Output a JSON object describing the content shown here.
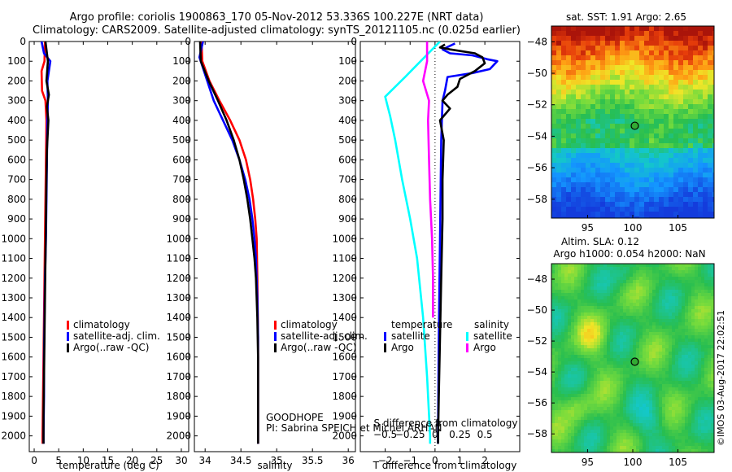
{
  "header": {
    "line1": "Argo profile: coriolis 1900863_170 05-Nov-2012 53.336S 100.227E (NRT data)",
    "line2": "Climatology: CARS2009. Satellite-adjusted climatology: synTS_20121105.nc (0.025d earlier)"
  },
  "footer": {
    "stamp": "©IMOS 03-Aug-2017 22:02:51",
    "program": "GOODHOPE",
    "pi": "PI: Sabrina SPEICH et Michel ARHAN"
  },
  "colors": {
    "climatology": "#ff0000",
    "satellite": "#0000ff",
    "argo": "#000000",
    "argo_salinity": "#ff00ff",
    "satellite_salinity": "#00ffff"
  },
  "chart_data": [
    {
      "type": "line",
      "xlabel": "temperature (deg C)",
      "ylabel": "",
      "xlim": [
        -1,
        31.5
      ],
      "ylim": [
        2080,
        0
      ],
      "y_reversed": true,
      "xticks": [
        0,
        5,
        10,
        15,
        20,
        25,
        30
      ],
      "yticks": [
        0,
        100,
        200,
        300,
        400,
        500,
        600,
        700,
        800,
        900,
        1000,
        1100,
        1200,
        1300,
        1400,
        1500,
        1600,
        1700,
        1800,
        1900,
        2000
      ],
      "legend": [
        "climatology",
        "satellite-adj. clim.",
        "Argo(..raw -QC)"
      ],
      "legend_position": "lower-left",
      "series": [
        {
          "name": "climatology",
          "color": "#ff0000",
          "points": [
            [
              2.2,
              0
            ],
            [
              2.1,
              100
            ],
            [
              1.5,
              150
            ],
            [
              1.6,
              250
            ],
            [
              2.3,
              300
            ],
            [
              2.5,
              400
            ],
            [
              2.4,
              600
            ],
            [
              2.3,
              800
            ],
            [
              2.2,
              1000
            ],
            [
              2.1,
              1200
            ],
            [
              2.0,
              1400
            ],
            [
              1.9,
              1600
            ],
            [
              1.8,
              1800
            ],
            [
              1.7,
              2000
            ],
            [
              1.7,
              2040
            ]
          ]
        },
        {
          "name": "satellite-adj. clim.",
          "color": "#0000ff",
          "points": [
            [
              1.5,
              0
            ],
            [
              2.0,
              60
            ],
            [
              3.3,
              100
            ],
            [
              2.7,
              200
            ],
            [
              2.8,
              300
            ],
            [
              2.7,
              400
            ],
            [
              2.6,
              600
            ],
            [
              2.5,
              800
            ],
            [
              2.4,
              1000
            ],
            [
              2.2,
              1200
            ],
            [
              2.1,
              1400
            ],
            [
              2.0,
              1600
            ],
            [
              2.0,
              1800
            ],
            [
              1.9,
              2000
            ],
            [
              1.9,
              2040
            ]
          ]
        },
        {
          "name": "Argo(..raw -QC)",
          "color": "#000000",
          "points": [
            [
              2.3,
              0
            ],
            [
              2.8,
              100
            ],
            [
              2.5,
              200
            ],
            [
              3.0,
              270
            ],
            [
              2.6,
              330
            ],
            [
              2.9,
              400
            ],
            [
              2.6,
              550
            ],
            [
              2.5,
              700
            ],
            [
              2.4,
              900
            ],
            [
              2.3,
              1100
            ],
            [
              2.2,
              1300
            ],
            [
              2.1,
              1500
            ],
            [
              2.0,
              1700
            ],
            [
              1.9,
              1900
            ],
            [
              1.9,
              2040
            ]
          ]
        }
      ]
    },
    {
      "type": "line",
      "xlabel": "salinity",
      "ylabel": "",
      "xlim": [
        33.85,
        36.1
      ],
      "ylim": [
        2080,
        0
      ],
      "y_reversed": true,
      "xticks": [
        34,
        34.5,
        35,
        35.5,
        36
      ],
      "yticks": [
        0,
        100,
        200,
        300,
        400,
        500,
        600,
        700,
        800,
        900,
        1000,
        1100,
        1200,
        1300,
        1400,
        1500,
        1600,
        1700,
        1800,
        1900,
        2000
      ],
      "legend": [
        "climatology",
        "satellite-adj. clim.",
        "Argo(..raw -QC)"
      ],
      "legend_position": "lower-right",
      "series": [
        {
          "name": "climatology",
          "color": "#ff0000",
          "points": [
            [
              33.95,
              0
            ],
            [
              33.96,
              100
            ],
            [
              34.06,
              200
            ],
            [
              34.2,
              300
            ],
            [
              34.35,
              400
            ],
            [
              34.48,
              500
            ],
            [
              34.57,
              600
            ],
            [
              34.63,
              700
            ],
            [
              34.67,
              800
            ],
            [
              34.7,
              900
            ],
            [
              34.72,
              1000
            ],
            [
              34.73,
              1200
            ],
            [
              34.74,
              1500
            ],
            [
              34.74,
              2000
            ],
            [
              34.74,
              2040
            ]
          ]
        },
        {
          "name": "satellite-adj. clim.",
          "color": "#0000ff",
          "points": [
            [
              33.97,
              0
            ],
            [
              33.92,
              80
            ],
            [
              34.03,
              200
            ],
            [
              34.12,
              300
            ],
            [
              34.25,
              400
            ],
            [
              34.38,
              500
            ],
            [
              34.48,
              600
            ],
            [
              34.56,
              700
            ],
            [
              34.62,
              800
            ],
            [
              34.66,
              900
            ],
            [
              34.69,
              1000
            ],
            [
              34.71,
              1100
            ],
            [
              34.73,
              1300
            ],
            [
              34.74,
              1500
            ],
            [
              34.74,
              1700
            ],
            [
              34.74,
              2000
            ],
            [
              34.74,
              2040
            ]
          ]
        },
        {
          "name": "Argo(..raw -QC)",
          "color": "#000000",
          "points": [
            [
              33.93,
              0
            ],
            [
              33.94,
              100
            ],
            [
              34.05,
              200
            ],
            [
              34.18,
              300
            ],
            [
              34.3,
              400
            ],
            [
              34.4,
              500
            ],
            [
              34.48,
              600
            ],
            [
              34.54,
              700
            ],
            [
              34.59,
              800
            ],
            [
              34.63,
              900
            ],
            [
              34.66,
              1000
            ],
            [
              34.69,
              1100
            ],
            [
              34.71,
              1200
            ],
            [
              34.73,
              1400
            ],
            [
              34.74,
              1600
            ],
            [
              34.74,
              2000
            ],
            [
              34.74,
              2040
            ]
          ]
        }
      ]
    },
    {
      "type": "line",
      "xlabel": "T difference from climatology",
      "xlabel_top": "S difference from climatology",
      "xlim": [
        -3,
        3.4
      ],
      "ylim": [
        2080,
        0
      ],
      "y_reversed": true,
      "xticks": [
        -2,
        -1,
        0,
        1,
        2
      ],
      "xticks_secondary": [
        -0.5,
        -0.25,
        0,
        0.25,
        0.5
      ],
      "yticks": [
        0,
        100,
        200,
        300,
        400,
        500,
        600,
        700,
        800,
        900,
        1000,
        1100,
        1200,
        1300,
        1400,
        1500,
        1600,
        1700,
        1800,
        1900,
        2000
      ],
      "legend_groups": [
        {
          "title": "temperature",
          "items": [
            "satellite",
            "Argo"
          ]
        },
        {
          "title": "salinity",
          "items": [
            "satellite",
            "Argo"
          ]
        }
      ],
      "series": [
        {
          "name": "satellite",
          "group": "temperature",
          "color": "#0000ff",
          "points": [
            [
              0.8,
              10
            ],
            [
              0.3,
              40
            ],
            [
              0.6,
              60
            ],
            [
              1.5,
              70
            ],
            [
              2.1,
              90
            ],
            [
              2.5,
              100
            ],
            [
              2.2,
              140
            ],
            [
              1.5,
              160
            ],
            [
              0.5,
              180
            ],
            [
              0.4,
              250
            ],
            [
              0.3,
              300
            ],
            [
              0.25,
              500
            ],
            [
              0.22,
              800
            ],
            [
              0.2,
              1000
            ],
            [
              0.15,
              1500
            ],
            [
              0.12,
              2000
            ],
            [
              0.12,
              2040
            ]
          ]
        },
        {
          "name": "Argo",
          "group": "temperature",
          "color": "#000000",
          "points": [
            [
              0.4,
              15
            ],
            [
              0.2,
              30
            ],
            [
              0.6,
              40
            ],
            [
              1.6,
              60
            ],
            [
              1.9,
              80
            ],
            [
              2.0,
              110
            ],
            [
              1.6,
              150
            ],
            [
              1.0,
              190
            ],
            [
              0.9,
              230
            ],
            [
              0.5,
              270
            ],
            [
              0.3,
              300
            ],
            [
              0.6,
              340
            ],
            [
              0.2,
              400
            ],
            [
              0.35,
              500
            ],
            [
              0.3,
              700
            ],
            [
              0.3,
              900
            ],
            [
              0.25,
              1200
            ],
            [
              0.2,
              1500
            ],
            [
              0.15,
              1800
            ],
            [
              0.12,
              2040
            ]
          ]
        },
        {
          "name": "satellite",
          "group": "salinity",
          "color": "#00ffff",
          "points": [
            [
              0.05,
              0
            ],
            [
              -0.3,
              180
            ],
            [
              -0.5,
              280
            ],
            [
              -0.45,
              380
            ],
            [
              -0.4,
              500
            ],
            [
              -0.33,
              700
            ],
            [
              -0.25,
              900
            ],
            [
              -0.18,
              1100
            ],
            [
              -0.12,
              1400
            ],
            [
              -0.08,
              1700
            ],
            [
              -0.05,
              2000
            ],
            [
              -0.05,
              2040
            ]
          ]
        },
        {
          "name": "Argo",
          "group": "salinity",
          "color": "#ff00ff",
          "points": [
            [
              -0.08,
              0
            ],
            [
              -0.08,
              100
            ],
            [
              -0.12,
              200
            ],
            [
              -0.06,
              300
            ],
            [
              -0.07,
              400
            ],
            [
              -0.06,
              600
            ],
            [
              -0.05,
              800
            ],
            [
              -0.03,
              1000
            ],
            [
              -0.02,
              1200
            ],
            [
              -0.02,
              1400
            ]
          ]
        }
      ]
    },
    {
      "type": "heatmap",
      "title": "sat. SST: 1.91 Argo: 2.65",
      "xlim": [
        91,
        109
      ],
      "ylim": [
        -59.2,
        -47
      ],
      "xticks": [
        95,
        100,
        105
      ],
      "yticks": [
        -48,
        -50,
        -52,
        -54,
        -56,
        -58
      ],
      "marker": {
        "lon": 100.227,
        "lat": -53.336
      }
    },
    {
      "type": "heatmap",
      "title": "Altim. SLA: 0.12",
      "subtitle": "Argo h1000: 0.054 h2000: NaN",
      "xlim": [
        91,
        109
      ],
      "ylim": [
        -59.2,
        -47
      ],
      "xticks": [
        95,
        100,
        105
      ],
      "yticks": [
        -48,
        -50,
        -52,
        -54,
        -56,
        -58
      ],
      "marker": {
        "lon": 100.227,
        "lat": -53.336
      }
    }
  ]
}
